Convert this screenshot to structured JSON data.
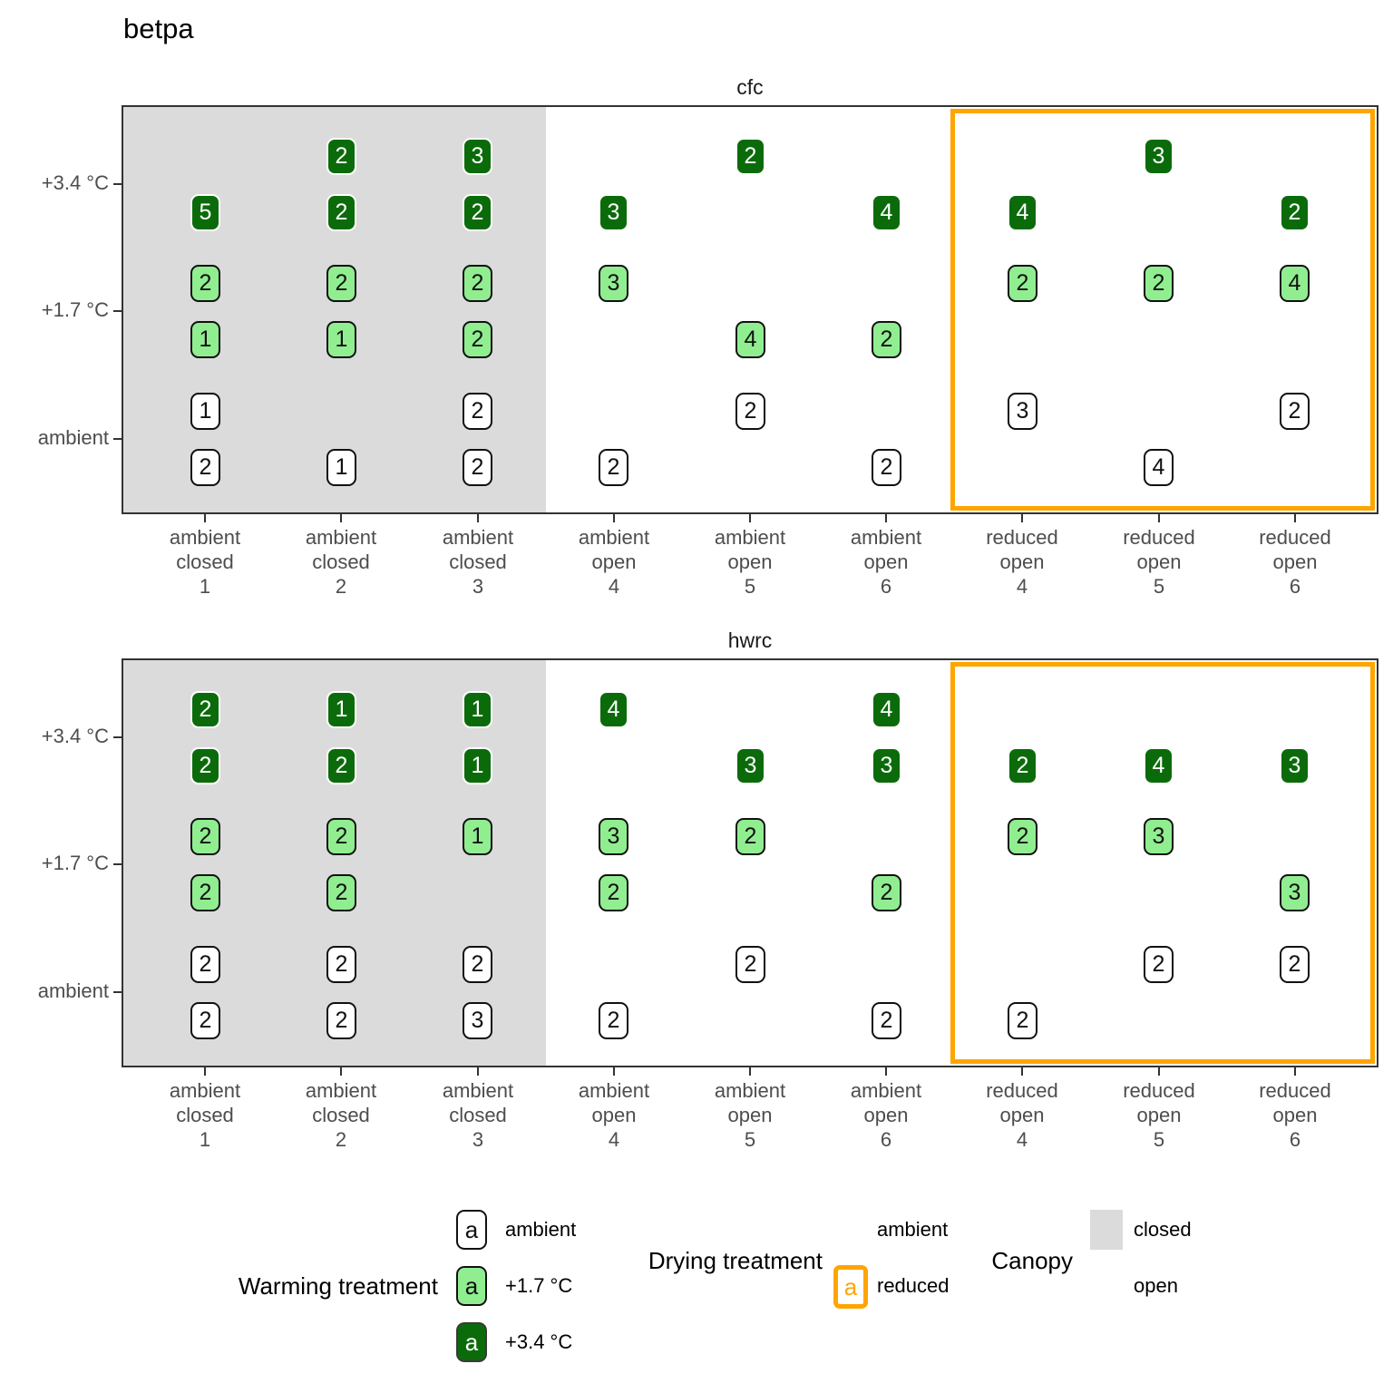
{
  "title": "betpa",
  "colors": {
    "warming_ambient_fill": "#FFFFFF",
    "warming_plus17_fill": "#90EE90",
    "warming_plus34_fill": "#0B6B0B",
    "canopy_closed_fill": "#DBDBDB",
    "drying_reduced_border": "#FFA500"
  },
  "chart_data": {
    "type": "scatter",
    "title": "betpa",
    "x_categories": [
      [
        "ambient",
        "closed",
        "1"
      ],
      [
        "ambient",
        "closed",
        "2"
      ],
      [
        "ambient",
        "closed",
        "3"
      ],
      [
        "ambient",
        "open",
        "4"
      ],
      [
        "ambient",
        "open",
        "5"
      ],
      [
        "ambient",
        "open",
        "6"
      ],
      [
        "reduced",
        "open",
        "4"
      ],
      [
        "reduced",
        "open",
        "5"
      ],
      [
        "reduced",
        "open",
        "6"
      ]
    ],
    "y_ticks": [
      "+3.4 °C",
      "+1.7 °C",
      "ambient"
    ],
    "canopy_closed_columns": [
      1,
      2,
      3
    ],
    "drying_reduced_columns": [
      7,
      8,
      9
    ],
    "legend_position": "bottom",
    "facets": [
      {
        "title": "cfc",
        "points": [
          {
            "x": 2,
            "warming": "+3.4 °C",
            "slot": "upper",
            "value": 2
          },
          {
            "x": 3,
            "warming": "+3.4 °C",
            "slot": "upper",
            "value": 3
          },
          {
            "x": 5,
            "warming": "+3.4 °C",
            "slot": "upper",
            "value": 2
          },
          {
            "x": 8,
            "warming": "+3.4 °C",
            "slot": "upper",
            "value": 3
          },
          {
            "x": 1,
            "warming": "+3.4 °C",
            "slot": "lower",
            "value": 5
          },
          {
            "x": 2,
            "warming": "+3.4 °C",
            "slot": "lower",
            "value": 2
          },
          {
            "x": 3,
            "warming": "+3.4 °C",
            "slot": "lower",
            "value": 2
          },
          {
            "x": 4,
            "warming": "+3.4 °C",
            "slot": "lower",
            "value": 3
          },
          {
            "x": 6,
            "warming": "+3.4 °C",
            "slot": "lower",
            "value": 4
          },
          {
            "x": 7,
            "warming": "+3.4 °C",
            "slot": "lower",
            "value": 4
          },
          {
            "x": 9,
            "warming": "+3.4 °C",
            "slot": "lower",
            "value": 2
          },
          {
            "x": 1,
            "warming": "+1.7 °C",
            "slot": "upper",
            "value": 2
          },
          {
            "x": 2,
            "warming": "+1.7 °C",
            "slot": "upper",
            "value": 2
          },
          {
            "x": 3,
            "warming": "+1.7 °C",
            "slot": "upper",
            "value": 2
          },
          {
            "x": 4,
            "warming": "+1.7 °C",
            "slot": "upper",
            "value": 3
          },
          {
            "x": 7,
            "warming": "+1.7 °C",
            "slot": "upper",
            "value": 2
          },
          {
            "x": 8,
            "warming": "+1.7 °C",
            "slot": "upper",
            "value": 2
          },
          {
            "x": 9,
            "warming": "+1.7 °C",
            "slot": "upper",
            "value": 4
          },
          {
            "x": 1,
            "warming": "+1.7 °C",
            "slot": "lower",
            "value": 1
          },
          {
            "x": 2,
            "warming": "+1.7 °C",
            "slot": "lower",
            "value": 1
          },
          {
            "x": 3,
            "warming": "+1.7 °C",
            "slot": "lower",
            "value": 2
          },
          {
            "x": 5,
            "warming": "+1.7 °C",
            "slot": "lower",
            "value": 4
          },
          {
            "x": 6,
            "warming": "+1.7 °C",
            "slot": "lower",
            "value": 2
          },
          {
            "x": 1,
            "warming": "ambient",
            "slot": "upper",
            "value": 1
          },
          {
            "x": 3,
            "warming": "ambient",
            "slot": "upper",
            "value": 2
          },
          {
            "x": 5,
            "warming": "ambient",
            "slot": "upper",
            "value": 2
          },
          {
            "x": 7,
            "warming": "ambient",
            "slot": "upper",
            "value": 3
          },
          {
            "x": 9,
            "warming": "ambient",
            "slot": "upper",
            "value": 2
          },
          {
            "x": 1,
            "warming": "ambient",
            "slot": "lower",
            "value": 2
          },
          {
            "x": 2,
            "warming": "ambient",
            "slot": "lower",
            "value": 1
          },
          {
            "x": 3,
            "warming": "ambient",
            "slot": "lower",
            "value": 2
          },
          {
            "x": 4,
            "warming": "ambient",
            "slot": "lower",
            "value": 2
          },
          {
            "x": 6,
            "warming": "ambient",
            "slot": "lower",
            "value": 2
          },
          {
            "x": 8,
            "warming": "ambient",
            "slot": "lower",
            "value": 4
          }
        ]
      },
      {
        "title": "hwrc",
        "points": [
          {
            "x": 1,
            "warming": "+3.4 °C",
            "slot": "upper",
            "value": 2
          },
          {
            "x": 2,
            "warming": "+3.4 °C",
            "slot": "upper",
            "value": 1
          },
          {
            "x": 3,
            "warming": "+3.4 °C",
            "slot": "upper",
            "value": 1
          },
          {
            "x": 4,
            "warming": "+3.4 °C",
            "slot": "upper",
            "value": 4
          },
          {
            "x": 6,
            "warming": "+3.4 °C",
            "slot": "upper",
            "value": 4
          },
          {
            "x": 1,
            "warming": "+3.4 °C",
            "slot": "lower",
            "value": 2
          },
          {
            "x": 2,
            "warming": "+3.4 °C",
            "slot": "lower",
            "value": 2
          },
          {
            "x": 3,
            "warming": "+3.4 °C",
            "slot": "lower",
            "value": 1
          },
          {
            "x": 5,
            "warming": "+3.4 °C",
            "slot": "lower",
            "value": 3
          },
          {
            "x": 6,
            "warming": "+3.4 °C",
            "slot": "lower",
            "value": 3
          },
          {
            "x": 7,
            "warming": "+3.4 °C",
            "slot": "lower",
            "value": 2
          },
          {
            "x": 8,
            "warming": "+3.4 °C",
            "slot": "lower",
            "value": 4
          },
          {
            "x": 9,
            "warming": "+3.4 °C",
            "slot": "lower",
            "value": 3
          },
          {
            "x": 1,
            "warming": "+1.7 °C",
            "slot": "upper",
            "value": 2
          },
          {
            "x": 2,
            "warming": "+1.7 °C",
            "slot": "upper",
            "value": 2
          },
          {
            "x": 3,
            "warming": "+1.7 °C",
            "slot": "upper",
            "value": 1
          },
          {
            "x": 4,
            "warming": "+1.7 °C",
            "slot": "upper",
            "value": 3
          },
          {
            "x": 5,
            "warming": "+1.7 °C",
            "slot": "upper",
            "value": 2
          },
          {
            "x": 7,
            "warming": "+1.7 °C",
            "slot": "upper",
            "value": 2
          },
          {
            "x": 8,
            "warming": "+1.7 °C",
            "slot": "upper",
            "value": 3
          },
          {
            "x": 1,
            "warming": "+1.7 °C",
            "slot": "lower",
            "value": 2
          },
          {
            "x": 2,
            "warming": "+1.7 °C",
            "slot": "lower",
            "value": 2
          },
          {
            "x": 4,
            "warming": "+1.7 °C",
            "slot": "lower",
            "value": 2
          },
          {
            "x": 6,
            "warming": "+1.7 °C",
            "slot": "lower",
            "value": 2
          },
          {
            "x": 9,
            "warming": "+1.7 °C",
            "slot": "lower",
            "value": 3
          },
          {
            "x": 1,
            "warming": "ambient",
            "slot": "upper",
            "value": 2
          },
          {
            "x": 2,
            "warming": "ambient",
            "slot": "upper",
            "value": 2
          },
          {
            "x": 3,
            "warming": "ambient",
            "slot": "upper",
            "value": 2
          },
          {
            "x": 5,
            "warming": "ambient",
            "slot": "upper",
            "value": 2
          },
          {
            "x": 8,
            "warming": "ambient",
            "slot": "upper",
            "value": 2
          },
          {
            "x": 9,
            "warming": "ambient",
            "slot": "upper",
            "value": 2
          },
          {
            "x": 1,
            "warming": "ambient",
            "slot": "lower",
            "value": 2
          },
          {
            "x": 2,
            "warming": "ambient",
            "slot": "lower",
            "value": 2
          },
          {
            "x": 3,
            "warming": "ambient",
            "slot": "lower",
            "value": 3
          },
          {
            "x": 4,
            "warming": "ambient",
            "slot": "lower",
            "value": 2
          },
          {
            "x": 6,
            "warming": "ambient",
            "slot": "lower",
            "value": 2
          },
          {
            "x": 7,
            "warming": "ambient",
            "slot": "lower",
            "value": 2
          }
        ]
      }
    ]
  },
  "legend": {
    "warming": {
      "title": "Warming treatment",
      "key_char": "a",
      "items": [
        {
          "label": "ambient",
          "fill": "#FFFFFF"
        },
        {
          "label": "+1.7 °C",
          "fill": "#90EE90"
        },
        {
          "label": "+3.4 °C",
          "fill": "#0B6B0B"
        }
      ]
    },
    "drying": {
      "title": "Drying treatment",
      "key_char": "a",
      "items": [
        {
          "label": "ambient",
          "key": "none"
        },
        {
          "label": "reduced",
          "key": "orange-outline"
        }
      ]
    },
    "canopy": {
      "title": "Canopy",
      "items": [
        {
          "label": "closed",
          "key": "gray-square"
        },
        {
          "label": "open",
          "key": "none"
        }
      ]
    }
  }
}
